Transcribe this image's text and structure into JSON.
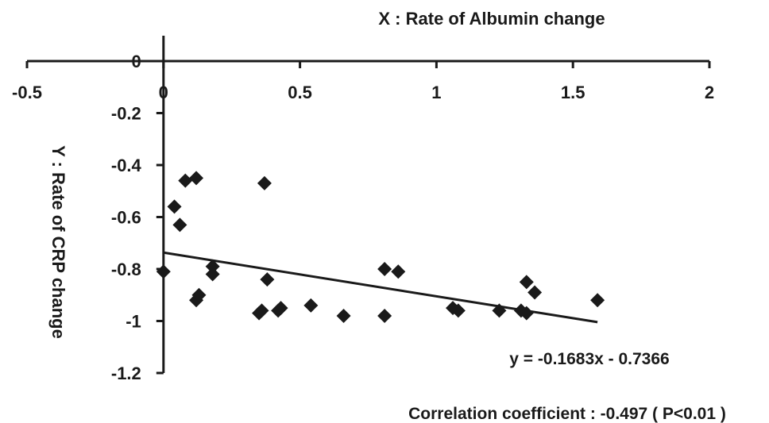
{
  "chart_data": {
    "type": "scatter",
    "xlabel": "X : Rate of Albumin change",
    "ylabel": "Y : Rate of CRP change",
    "xlim": [
      -0.5,
      2
    ],
    "ylim": [
      -1.2,
      0
    ],
    "x_ticks": [
      "-0.5",
      "0",
      "0.5",
      "1",
      "1.5",
      "2"
    ],
    "x_tick_values": [
      -0.5,
      0,
      0.5,
      1,
      1.5,
      2
    ],
    "y_ticks": [
      "0",
      "-0.2",
      "-0.4",
      "-0.6",
      "-0.8",
      "-1",
      "-1.2"
    ],
    "y_tick_values": [
      0,
      -0.2,
      -0.4,
      -0.6,
      -0.8,
      -1,
      -1.2
    ],
    "x_axis_position": "top",
    "grid": false,
    "marker": "diamond",
    "marker_color": "#1a1a1a",
    "points": [
      {
        "x": 0.0,
        "y": -0.81
      },
      {
        "x": 0.04,
        "y": -0.56
      },
      {
        "x": 0.06,
        "y": -0.63
      },
      {
        "x": 0.08,
        "y": -0.46
      },
      {
        "x": 0.12,
        "y": -0.45
      },
      {
        "x": 0.12,
        "y": -0.92
      },
      {
        "x": 0.13,
        "y": -0.9
      },
      {
        "x": 0.18,
        "y": -0.79
      },
      {
        "x": 0.18,
        "y": -0.82
      },
      {
        "x": 0.35,
        "y": -0.97
      },
      {
        "x": 0.36,
        "y": -0.96
      },
      {
        "x": 0.37,
        "y": -0.47
      },
      {
        "x": 0.38,
        "y": -0.84
      },
      {
        "x": 0.42,
        "y": -0.96
      },
      {
        "x": 0.43,
        "y": -0.95
      },
      {
        "x": 0.54,
        "y": -0.94
      },
      {
        "x": 0.66,
        "y": -0.98
      },
      {
        "x": 0.81,
        "y": -0.8
      },
      {
        "x": 0.81,
        "y": -0.98
      },
      {
        "x": 0.86,
        "y": -0.81
      },
      {
        "x": 1.06,
        "y": -0.95
      },
      {
        "x": 1.08,
        "y": -0.96
      },
      {
        "x": 1.23,
        "y": -0.96
      },
      {
        "x": 1.31,
        "y": -0.96
      },
      {
        "x": 1.33,
        "y": -0.97
      },
      {
        "x": 1.33,
        "y": -0.85
      },
      {
        "x": 1.36,
        "y": -0.89
      },
      {
        "x": 1.59,
        "y": -0.92
      }
    ],
    "trendline": {
      "slope": -0.1683,
      "intercept": -0.7366,
      "x_range": [
        0,
        1.59
      ],
      "equation": "y = -0.1683x - 0.7366"
    },
    "annotations": {
      "correlation": "Correlation coefficient : -0.497 ( P<0.01 )"
    }
  }
}
